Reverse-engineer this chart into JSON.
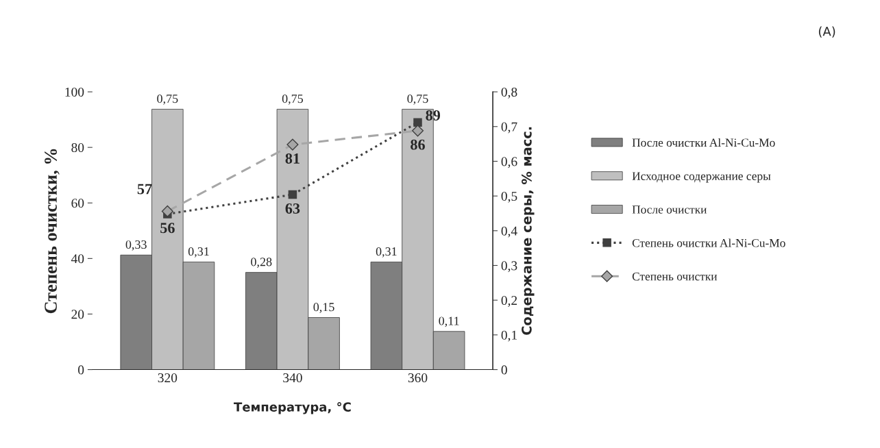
{
  "chart_data": {
    "type": "bar",
    "title": "(A)",
    "xlabel": "Температура, °C",
    "ylabel": "Степень очистки, %",
    "y2label": "Содержание серы, % масс.",
    "categories": [
      "320",
      "340",
      "360"
    ],
    "series": [
      {
        "name": "После очистки Al-Ni-Cu-Mo",
        "axis": "y2",
        "color": "#7f7f7f",
        "values": [
          0.33,
          0.28,
          0.31
        ],
        "value_labels": [
          "0,33",
          "0,28",
          "0,31"
        ]
      },
      {
        "name": "Исходное содержание серы",
        "axis": "y2",
        "color": "#bfbfbf",
        "values": [
          0.75,
          0.75,
          0.75
        ],
        "value_labels": [
          "0,75",
          "0,75",
          "0,75"
        ]
      },
      {
        "name": "После очистки",
        "axis": "y2",
        "color": "#a6a6a6",
        "values": [
          0.31,
          0.15,
          0.11
        ],
        "value_labels": [
          "0,31",
          "0,15",
          "0,11"
        ]
      },
      {
        "name": "Степень очистки Al-Ni-Cu-Mo",
        "type": "line",
        "axis": "y",
        "color": "#404040",
        "marker": "square",
        "line_style": "dotted",
        "values": [
          56,
          63,
          89
        ],
        "value_labels": [
          "56",
          "63",
          "89"
        ]
      },
      {
        "name": "Степень очистки",
        "type": "line",
        "axis": "y",
        "color": "#a6a6a6",
        "marker": "diamond",
        "line_style": "dashed",
        "values": [
          57,
          81,
          86
        ],
        "value_labels": [
          "57",
          "81",
          "86"
        ]
      }
    ],
    "ylim": [
      0,
      100
    ],
    "yticks": [
      0,
      20,
      40,
      60,
      80,
      100
    ],
    "y2lim": [
      0,
      0.8
    ],
    "y2ticks": [
      {
        "value": 0,
        "label": "0"
      },
      {
        "value": 0.1,
        "label": "0,1"
      },
      {
        "value": 0.2,
        "label": "0,2"
      },
      {
        "value": 0.3,
        "label": "0,3"
      },
      {
        "value": 0.4,
        "label": "0,4"
      },
      {
        "value": 0.5,
        "label": "0,5"
      },
      {
        "value": 0.6,
        "label": "0,6"
      },
      {
        "value": 0.7,
        "label": "0,7"
      },
      {
        "value": 0.8,
        "label": "0,8"
      }
    ],
    "grid": false,
    "legend": "right"
  }
}
